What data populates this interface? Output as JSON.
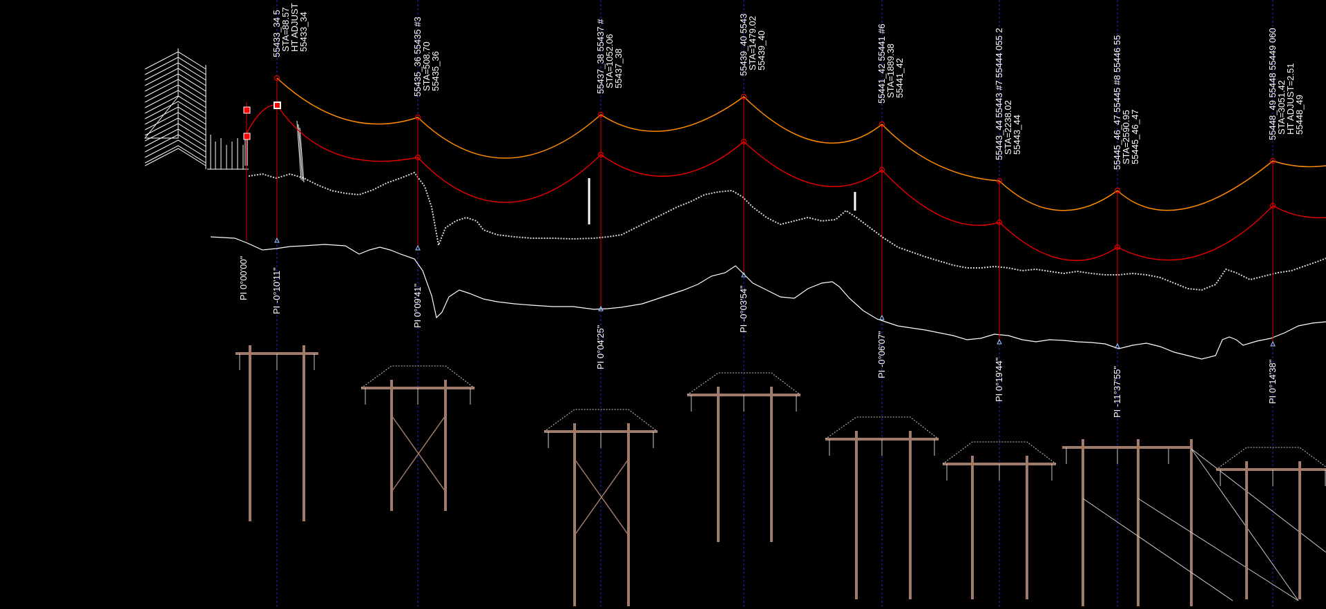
{
  "colors": {
    "background": "#000000",
    "wire_upper": "#ff8c00",
    "wire_lower": "#e00000",
    "structure": "#a07a6a",
    "centerline": "#1a2acc",
    "ground": "#ffffff",
    "label": "#ffffff"
  },
  "structures": [
    {
      "id": "s34",
      "pi": "PI -0°10'11\"",
      "labels": [
        "55433_34 5",
        "STA=88.57",
        "HT ADJUST",
        "55433_34"
      ]
    },
    {
      "id": "s36",
      "pi": "PI 0°09'41\"",
      "labels": [
        "55435_36 55435 #3",
        "STA=508.70",
        "55435_36"
      ]
    },
    {
      "id": "s38",
      "pi": "PI 0°04'25\"",
      "labels": [
        "55437_38 55437 #",
        "STA=1052.06",
        "55437_38"
      ]
    },
    {
      "id": "s40",
      "pi": "PI -0°03'54\"",
      "labels": [
        "55439_40 5543",
        "STA=1479.02",
        "55439_40"
      ]
    },
    {
      "id": "s42",
      "pi": "PI -0°06'07\"",
      "labels": [
        "55441_42 55441 #6",
        "STA=1889.38",
        "55441_42"
      ]
    },
    {
      "id": "s44",
      "pi": "PI 0°19'44\"",
      "labels": [
        "55443_44 55443 #7 55444 055 2",
        "STA=2238.02",
        "55443_44"
      ]
    },
    {
      "id": "s47",
      "pi": "PI -11°37'55\"",
      "labels": [
        "55445_46_47 55445 #8 55446 55",
        "STA=2590.95",
        "55445_46_47"
      ]
    },
    {
      "id": "s49",
      "pi": "PI 0°14'38\"",
      "labels": [
        "55448_49 55448 55449 060",
        "STA=3051.42",
        "HT ADJUST=2.51",
        "55448_49"
      ]
    }
  ],
  "left_pi": "PI 0°00'00\""
}
